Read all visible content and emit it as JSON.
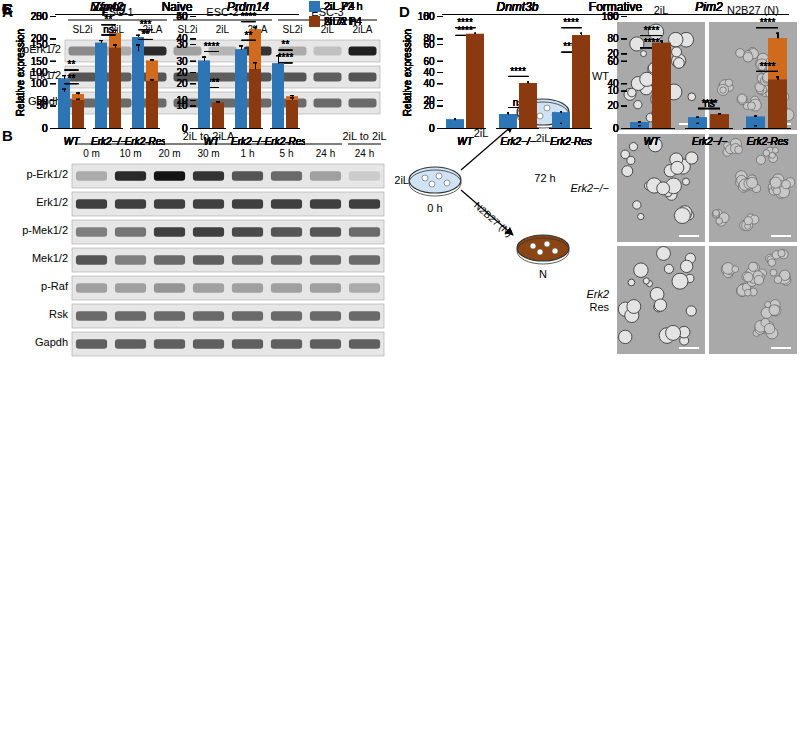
{
  "blots": [
    {
      "panel": "A",
      "lane_groups": [
        {
          "label": "ESC-1",
          "lanes": [
            "SL2i",
            "2iL",
            "2iLA"
          ]
        },
        {
          "label": "ESC-2",
          "lanes": [
            "SL2i",
            "2iL",
            "2iLA"
          ]
        },
        {
          "label": "ESC-3",
          "lanes": [
            "SL2i",
            "2iL",
            "2iLA"
          ]
        }
      ],
      "rows": [
        {
          "label": "pErk1/2",
          "intensity": [
            0.45,
            0.3,
            0.9,
            0.35,
            0.25,
            0.85,
            0.3,
            0.2,
            0.95
          ]
        },
        {
          "label": "Erk1/2",
          "intensity": [
            0.7,
            0.65,
            0.7,
            0.7,
            0.65,
            0.7,
            0.7,
            0.65,
            0.7
          ]
        },
        {
          "label": "Gapdh",
          "intensity": [
            0.6,
            0.6,
            0.6,
            0.6,
            0.6,
            0.6,
            0.6,
            0.6,
            0.6
          ]
        }
      ]
    },
    {
      "panel": "B",
      "lane_groups": [
        {
          "label": "2iL to 2iLA",
          "lanes": [
            "0 m",
            "10 m",
            "20 m",
            "30 m",
            "1 h",
            "5 h",
            "24 h"
          ]
        },
        {
          "label": "2iL to 2iL",
          "lanes": [
            "24 h"
          ]
        }
      ],
      "rows": [
        {
          "label": "p-Erk1/2",
          "intensity": [
            0.3,
            0.9,
            1.0,
            0.85,
            0.7,
            0.6,
            0.35,
            0.15
          ]
        },
        {
          "label": "Erk1/2",
          "intensity": [
            0.8,
            0.8,
            0.8,
            0.8,
            0.8,
            0.8,
            0.8,
            0.8
          ]
        },
        {
          "label": "p-Mek1/2",
          "intensity": [
            0.5,
            0.55,
            0.8,
            0.8,
            0.75,
            0.7,
            0.7,
            0.6
          ]
        },
        {
          "label": "Mek1/2",
          "intensity": [
            0.7,
            0.5,
            0.6,
            0.65,
            0.6,
            0.6,
            0.6,
            0.6
          ]
        },
        {
          "label": "p-Raf",
          "intensity": [
            0.35,
            0.35,
            0.4,
            0.35,
            0.35,
            0.35,
            0.35,
            0.3
          ]
        },
        {
          "label": "Rsk",
          "intensity": [
            0.6,
            0.6,
            0.6,
            0.6,
            0.6,
            0.6,
            0.6,
            0.6
          ]
        },
        {
          "label": "Gapdh",
          "intensity": [
            0.65,
            0.65,
            0.65,
            0.65,
            0.65,
            0.65,
            0.65,
            0.65
          ]
        }
      ]
    }
  ],
  "schematic": {
    "panel": "D",
    "start": "2iL",
    "start_time": "0 h",
    "arrow_top": "2iL",
    "arrow_bottom": "N2B27 (N)",
    "duration": "72 h",
    "end_top": "2iL",
    "end_bottom": "N"
  },
  "micrographs": {
    "columns": [
      "2iL",
      "N2B27 (N)"
    ],
    "rows": [
      "WT",
      "Erk2−/−",
      "Erk2 Res"
    ]
  },
  "chart_data": [
    {
      "type": "bar",
      "panel": "C",
      "group": "Naive",
      "title": "Nanog",
      "categories": [
        "WT",
        "Erk2−/−",
        "Erk2-Res"
      ],
      "series": [
        {
          "name": "2iL P4",
          "color": "#2e75b6",
          "values": [
            110,
            172,
            203
          ],
          "errors": [
            8,
            8,
            5
          ]
        },
        {
          "name": "2iLA P4",
          "color": "#d06a1d",
          "values": [
            75,
            212,
            150
          ],
          "errors": [
            4,
            7,
            3
          ]
        }
      ],
      "significance": [
        "**",
        "**",
        "***"
      ],
      "ylim": [
        0,
        250
      ],
      "yticks": [
        0,
        50,
        100,
        150,
        200,
        250
      ],
      "y_label": "Relative expression"
    },
    {
      "type": "bar",
      "panel": "C",
      "group": "Naive",
      "title": "Prdm14",
      "categories": [
        "WT",
        "Erk2−/−",
        "Erk2-Res"
      ],
      "series": [
        {
          "name": "2iL P4",
          "color": "#2e75b6",
          "values": [
            15,
            27,
            26
          ],
          "errors": [
            0.8,
            1,
            0.8
          ]
        },
        {
          "name": "2iLA P4",
          "color": "#d06a1d",
          "values": [
            7,
            44,
            14
          ],
          "errors": [
            0.4,
            1.2,
            0.7
          ]
        }
      ],
      "significance": [
        "****",
        "****",
        "****"
      ],
      "ylim": [
        0,
        50
      ],
      "yticks": [
        0,
        10,
        20,
        30,
        40,
        50
      ],
      "legend": "right"
    },
    {
      "type": "bar",
      "panel": "C",
      "group": "Formative",
      "title": "Dnmt3b",
      "categories": [
        "WT",
        "Erk2−/−",
        "Erk2-Res"
      ],
      "series": [
        {
          "name": "2iL P4",
          "color": "#2e75b6",
          "values": [
            6,
            10,
            11
          ],
          "errors": [
            0.8,
            1,
            0.8
          ]
        },
        {
          "name": "2iLA P4",
          "color": "#d06a1d",
          "values": [
            61,
            8,
            49
          ],
          "errors": [
            1.5,
            0.8,
            1.5
          ]
        }
      ],
      "significance": [
        "****",
        "ns",
        "****"
      ],
      "ylim": [
        0,
        80
      ],
      "yticks": [
        0,
        20,
        40,
        60,
        80
      ],
      "y_label": "Relative expression"
    },
    {
      "type": "bar",
      "panel": "C",
      "group": "Formative",
      "title": "Pim2",
      "categories": [
        "WT",
        "Erk2−/−",
        "Erk2-Res"
      ],
      "series": [
        {
          "name": "2iL P4",
          "color": "#2e75b6",
          "values": [
            1.5,
            2.8,
            3
          ],
          "errors": [
            0.2,
            0.2,
            0.3
          ]
        },
        {
          "name": "2iLA P4",
          "color": "#d06a1d",
          "values": [
            19.5,
            3.5,
            24
          ],
          "errors": [
            0.6,
            0.3,
            1.5
          ]
        }
      ],
      "significance": [
        "****",
        "ns",
        "****"
      ],
      "ylim": [
        0,
        30
      ],
      "yticks": [
        0,
        10,
        20,
        30
      ]
    },
    {
      "type": "bar",
      "panel": "E",
      "group": "Naive",
      "title": "Zfp42",
      "categories": [
        "WT",
        "Erk2−/−",
        "Erk2-Res"
      ],
      "series": [
        {
          "name": "2iL 72 h",
          "color": "#2e75b6",
          "values": [
            65,
            152,
            137
          ],
          "errors": [
            5,
            5,
            12
          ]
        },
        {
          "name": "N 72 h",
          "color": "#8b3a10",
          "values": [
            50,
            143,
            84
          ],
          "errors": [
            2,
            6,
            3
          ]
        }
      ],
      "significance": [
        "**",
        "ns",
        "**"
      ],
      "ylim": [
        0,
        200
      ],
      "yticks": [
        0,
        50,
        100,
        150,
        200
      ],
      "y_label": "Relative expression"
    },
    {
      "type": "bar",
      "panel": "E",
      "group": "Naive",
      "title": "Prdm14",
      "categories": [
        "WT",
        "Erk2−/−",
        "Erk2-Res"
      ],
      "series": [
        {
          "name": "2iL 72 h",
          "color": "#2e75b6",
          "values": [
            24,
            28,
            23
          ],
          "errors": [
            1.5,
            1.5,
            3
          ]
        },
        {
          "name": "N 72 h",
          "color": "#8b3a10",
          "values": [
            9,
            21,
            10
          ],
          "errors": [
            0.5,
            2.5,
            1
          ]
        }
      ],
      "significance": [
        "****",
        "**",
        "**"
      ],
      "ylim": [
        0,
        40
      ],
      "yticks": [
        0,
        10,
        20,
        30,
        40
      ],
      "legend": "right"
    },
    {
      "type": "bar",
      "panel": "E",
      "group": "Formative",
      "title": "Dnmt3b",
      "categories": [
        "WT",
        "Erk2−/−",
        "Erk2-Res"
      ],
      "series": [
        {
          "name": "2iL 72 h",
          "color": "#2e75b6",
          "values": [
            7,
            12,
            4
          ],
          "errors": [
            1,
            2,
            0.5
          ]
        },
        {
          "name": "N 72 h",
          "color": "#8b3a10",
          "values": [
            84,
            40,
            83
          ],
          "errors": [
            1,
            1.5,
            2
          ]
        }
      ],
      "significance": [
        "****",
        "****",
        "****"
      ],
      "ylim": [
        0,
        100
      ],
      "yticks": [
        0,
        20,
        40,
        60,
        80,
        100
      ],
      "y_label": "Relative expression"
    },
    {
      "type": "bar",
      "panel": "E",
      "group": "Formative",
      "title": "Pim2",
      "categories": [
        "WT",
        "Erk2−/−",
        "Erk2-Res"
      ],
      "series": [
        {
          "name": "2iL 72 h",
          "color": "#2e75b6",
          "values": [
            2,
            4,
            2
          ],
          "errors": [
            0.3,
            0.5,
            0.2
          ]
        },
        {
          "name": "N 72 h",
          "color": "#8b3a10",
          "values": [
            76,
            12,
            43
          ],
          "errors": [
            2,
            1,
            3
          ]
        }
      ],
      "significance": [
        "****",
        "****",
        "****"
      ],
      "ylim": [
        0,
        100
      ],
      "yticks": [
        0,
        20,
        40,
        60,
        80,
        100
      ]
    }
  ]
}
